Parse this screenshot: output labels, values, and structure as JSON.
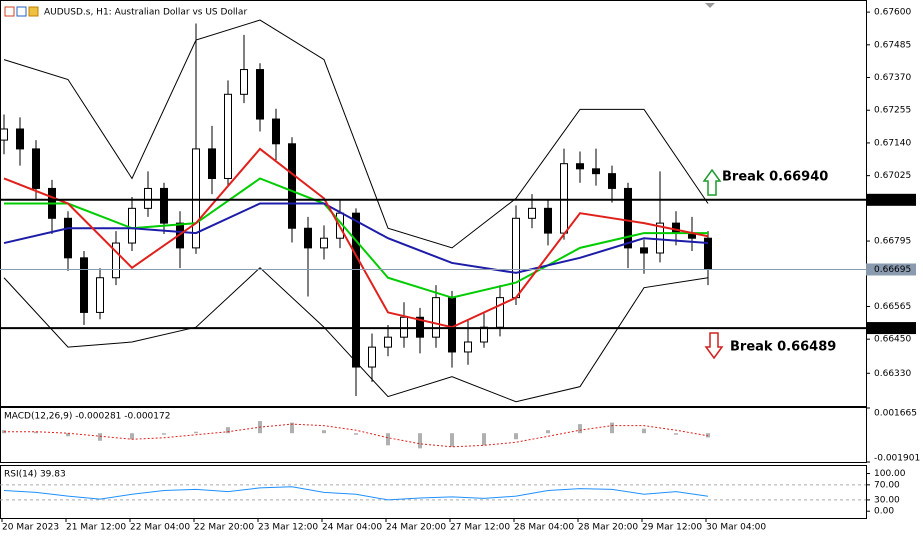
{
  "chart_data": {
    "type": "candlestick",
    "title": "AUDUSD.s, H1:  Australian Dollar vs US Dollar",
    "categories": [
      "20 Mar 2023",
      null,
      null,
      null,
      "21 Mar 12:00",
      null,
      null,
      null,
      "22 Mar 04:00",
      null,
      null,
      null,
      "22 Mar 20:00",
      null,
      null,
      null,
      "23 Mar 12:00",
      null,
      null,
      null,
      "24 Mar 04:00",
      null,
      null,
      null,
      "24 Mar 20:00",
      null,
      null,
      null,
      "27 Mar 12:00",
      null,
      null,
      null,
      "28 Mar 04:00",
      null,
      null,
      null,
      "28 Mar 20:00",
      null,
      null,
      null,
      "29 Mar 12:00",
      null,
      null,
      null,
      "30 Mar 04:00"
    ],
    "candles": {
      "open": [
        0.6715,
        0.67189,
        0.67119,
        0.6698,
        0.66875,
        0.66736,
        0.66544,
        0.66666,
        0.66788,
        0.6691,
        0.6698,
        0.66858,
        0.66771,
        0.67119,
        0.67015,
        0.67311,
        0.67398,
        0.67224,
        0.67137,
        0.6684,
        0.66771,
        0.66805,
        0.66893,
        0.66352,
        0.66422,
        0.66457,
        0.66527,
        0.66457,
        0.66596,
        0.66405,
        0.6644,
        0.66492,
        0.66596,
        0.66875,
        0.6691,
        0.66823,
        0.67067,
        0.67049,
        0.67032,
        0.6698,
        0.66771,
        0.66753,
        0.66858,
        0.66823,
        0.66805
      ],
      "high": [
        0.6724,
        0.6723,
        0.6715,
        0.6701,
        0.669,
        0.6676,
        0.667,
        0.6683,
        0.6695,
        0.6704,
        0.67,
        0.669,
        0.6756,
        0.672,
        0.6736,
        0.6752,
        0.6742,
        0.6726,
        0.6716,
        0.6688,
        0.6685,
        0.6694,
        0.6691,
        0.6647,
        0.665,
        0.6658,
        0.6656,
        0.6664,
        0.6662,
        0.6652,
        0.6654,
        0.6664,
        0.6692,
        0.6696,
        0.6694,
        0.6712,
        0.6711,
        0.6712,
        0.6706,
        0.67,
        0.668,
        0.6704,
        0.669,
        0.6688,
        0.6683
      ],
      "low": [
        0.671,
        0.6706,
        0.6694,
        0.6682,
        0.6669,
        0.665,
        0.6652,
        0.6664,
        0.6676,
        0.6688,
        0.6682,
        0.667,
        0.6675,
        0.6696,
        0.6699,
        0.6728,
        0.6718,
        0.6708,
        0.6679,
        0.666,
        0.6673,
        0.6677,
        0.6625,
        0.663,
        0.6639,
        0.6642,
        0.664,
        0.6642,
        0.6635,
        0.6636,
        0.6642,
        0.6646,
        0.6657,
        0.6684,
        0.6678,
        0.668,
        0.67,
        0.6699,
        0.6693,
        0.667,
        0.6668,
        0.6672,
        0.6678,
        0.6676,
        0.6664
      ],
      "close": [
        0.67189,
        0.67119,
        0.6698,
        0.66875,
        0.66736,
        0.66544,
        0.66666,
        0.66788,
        0.6691,
        0.6698,
        0.66858,
        0.66771,
        0.67119,
        0.67015,
        0.67311,
        0.67398,
        0.67224,
        0.67137,
        0.6684,
        0.66771,
        0.66805,
        0.66893,
        0.66352,
        0.66422,
        0.66457,
        0.66527,
        0.66457,
        0.66596,
        0.66405,
        0.6644,
        0.66492,
        0.66596,
        0.66875,
        0.6691,
        0.66823,
        0.67067,
        0.67049,
        0.67032,
        0.6698,
        0.66771,
        0.66753,
        0.66858,
        0.66823,
        0.66805,
        0.66695
      ]
    },
    "up_color": "#ffffff",
    "down_color": "#000000",
    "lines": [
      {
        "color": "#000000",
        "x": [
          0,
          4,
          8,
          12,
          16,
          20,
          24,
          28,
          32,
          36,
          40,
          44
        ],
        "values": [
          0.67433,
          0.67363,
          0.67015,
          0.67502,
          0.67572,
          0.67433,
          0.6684,
          0.66771,
          0.66945,
          0.67258,
          0.67258,
          0.66927
        ]
      },
      {
        "color": "#000000",
        "x": [
          0,
          4,
          8,
          12,
          16,
          20,
          24,
          28,
          32,
          36,
          40,
          44
        ],
        "values": [
          0.66666,
          0.66422,
          0.6644,
          0.66492,
          0.66701,
          0.66492,
          0.66248,
          0.66318,
          0.6623,
          0.66283,
          0.66631,
          0.66666
        ]
      },
      {
        "color": "#00cc00",
        "x": [
          0,
          4,
          8,
          12,
          16,
          20,
          24,
          28,
          32,
          36,
          40,
          44
        ],
        "values": [
          0.66927,
          0.66927,
          0.6684,
          0.66858,
          0.67015,
          0.66927,
          0.66666,
          0.66596,
          0.66649,
          0.66771,
          0.66823,
          0.66823
        ]
      },
      {
        "color": "#1c1ca8",
        "x": [
          0,
          4,
          8,
          12,
          16,
          20,
          24,
          28,
          32,
          36,
          40,
          44
        ],
        "values": [
          0.66788,
          0.6684,
          0.6684,
          0.66823,
          0.66927,
          0.66927,
          0.66805,
          0.66718,
          0.66683,
          0.66736,
          0.66805,
          0.66788
        ]
      },
      {
        "color": "#e0201b",
        "x": [
          0,
          4,
          8,
          12,
          16,
          20,
          24,
          28,
          32,
          36,
          40,
          44
        ],
        "values": [
          0.67015,
          0.66927,
          0.66701,
          0.66858,
          0.67119,
          0.66945,
          0.66544,
          0.66492,
          0.66596,
          0.66893,
          0.66858,
          0.66812
        ]
      }
    ],
    "ylim": [
      0.66215,
      0.67625
    ],
    "yticks": [
      {
        "value": 0.676,
        "label": "0.67600"
      },
      {
        "value": 0.67485,
        "label": "0.67485"
      },
      {
        "value": 0.6737,
        "label": "0.67370"
      },
      {
        "value": 0.67255,
        "label": "0.67255"
      },
      {
        "value": 0.6714,
        "label": "0.67140"
      },
      {
        "value": 0.67025,
        "label": "0.67025"
      },
      {
        "value": 0.66795,
        "label": "0.66795"
      },
      {
        "value": 0.66565,
        "label": "0.66565"
      },
      {
        "value": 0.6645,
        "label": "0.66450"
      },
      {
        "value": 0.6633,
        "label": "0.66330"
      }
    ],
    "levels": [
      {
        "value": 0.6694,
        "label": "0.66940"
      },
      {
        "value": 0.66489,
        "label": "0.66489"
      }
    ],
    "last_price": {
      "value": 0.66695,
      "label": "0.66695"
    },
    "annotations": [
      "Break 0.66940",
      "Break 0.66489"
    ],
    "macd": {
      "label": "MACD(12,26,9) -0.000281 -0.000172",
      "ylim": [
        -0.001901,
        0.001665
      ],
      "yticks": [
        0.001665,
        -0.001901
      ],
      "x": [
        0,
        2,
        4,
        6,
        8,
        10,
        12,
        14,
        16,
        18,
        20,
        22,
        24,
        26,
        28,
        30,
        32,
        34,
        36,
        38,
        40,
        42,
        44
      ],
      "histogram": [
        0.0002,
        0.0001,
        -0.0002,
        -0.0005,
        -0.0004,
        -0.0001,
        0.0001,
        0.0004,
        0.0008,
        0.0007,
        0.0002,
        -0.0001,
        -0.0008,
        -0.001,
        -0.0009,
        -0.0008,
        -0.0004,
        0.0002,
        0.0006,
        0.0007,
        0.0003,
        -0.0001,
        -0.000281
      ],
      "signal": [
        0.0001,
        0.0001,
        0,
        -0.0002,
        -0.0004,
        -0.0003,
        -0.0001,
        0.0001,
        0.0004,
        0.0006,
        0.0005,
        0.0002,
        -0.0003,
        -0.0007,
        -0.0009,
        -0.0008,
        -0.0006,
        -0.0002,
        0.0002,
        0.0005,
        0.0005,
        0.0002,
        -0.000172
      ],
      "histogram_color": "#b0b0b0",
      "signal_color": "#e0201b"
    },
    "rsi": {
      "label": "RSI(14) 39.83",
      "ylim": [
        -18,
        120
      ],
      "yticks": [
        {
          "value": 100,
          "label": "100.00"
        },
        {
          "value": 70,
          "label": "70.00"
        },
        {
          "value": 30,
          "label": "30.00"
        },
        {
          "value": 0,
          "label": "0.00"
        }
      ],
      "x": [
        0,
        2,
        4,
        6,
        8,
        10,
        12,
        14,
        16,
        18,
        20,
        22,
        24,
        26,
        28,
        30,
        32,
        34,
        36,
        38,
        40,
        42,
        44
      ],
      "values": [
        55,
        50,
        40,
        32,
        45,
        55,
        58,
        52,
        62,
        65,
        50,
        45,
        30,
        35,
        38,
        34,
        40,
        55,
        60,
        58,
        45,
        52,
        39.83
      ],
      "color": "#1e90ff"
    }
  }
}
